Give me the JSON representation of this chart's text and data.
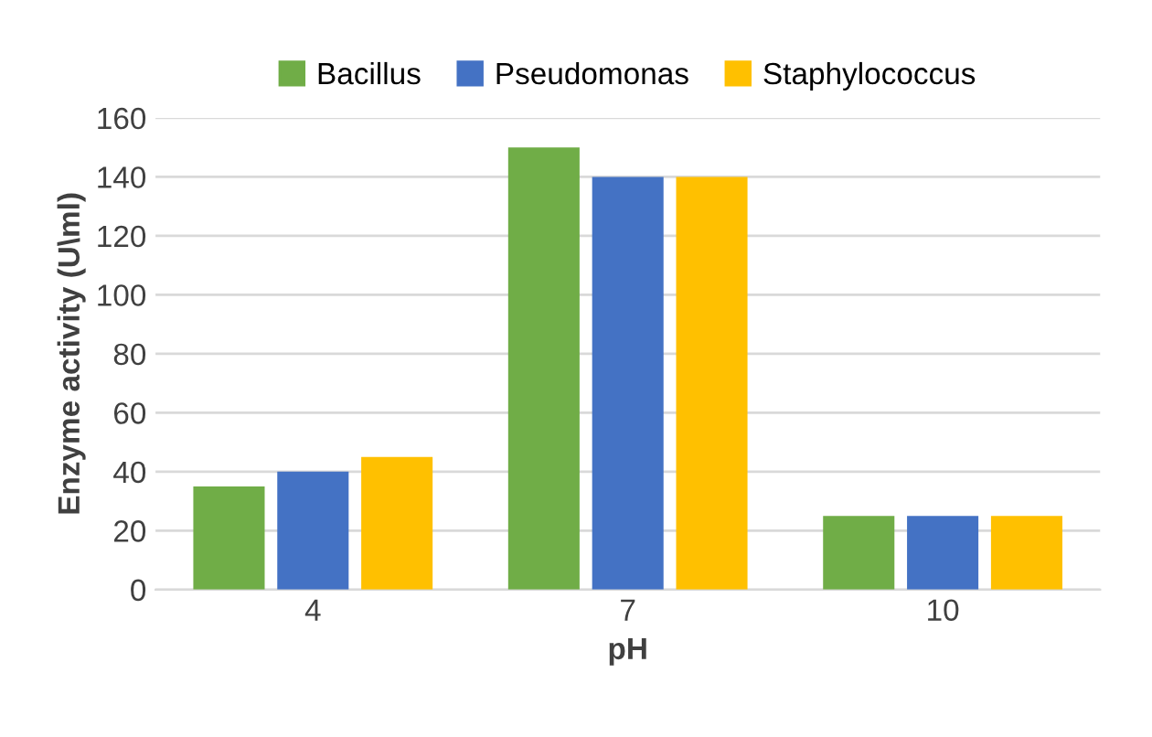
{
  "chart_data": {
    "type": "bar",
    "xlabel": "pH",
    "ylabel": "Enzyme activity (U\\ml)",
    "categories": [
      "4",
      "7",
      "10"
    ],
    "series": [
      {
        "name": "Bacillus",
        "color": "#70ad47",
        "values": [
          35,
          150,
          25
        ]
      },
      {
        "name": "Pseudomonas",
        "color": "#4472c4",
        "values": [
          40,
          140,
          25
        ]
      },
      {
        "name": "Staphylococcus",
        "color": "#ffc000",
        "values": [
          45,
          140,
          25
        ]
      }
    ],
    "ylim": [
      0,
      160
    ],
    "yticks": [
      0,
      20,
      40,
      60,
      80,
      100,
      120,
      140,
      160
    ],
    "grid": "y",
    "legend": "top"
  }
}
